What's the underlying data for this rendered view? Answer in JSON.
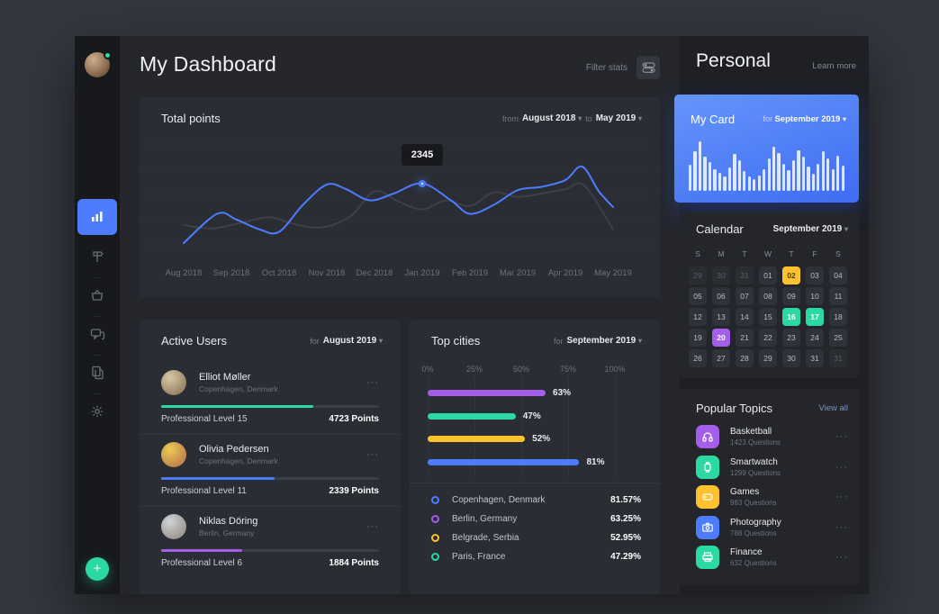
{
  "colors": {
    "accent_blue": "#4d7cfe",
    "green": "#2bd9a4",
    "yellow": "#fdc22d",
    "purple": "#a55eea",
    "panel": "#2a2d34",
    "sidebar": "#17191d",
    "main_bg": "#25272d",
    "right_bg": "#1e2025",
    "outer_bg": "#34373e"
  },
  "app": {
    "title": "My Dashboard",
    "filter_stats": "Filter stats"
  },
  "sidebar": {
    "items": [
      {
        "icon": "bar-chart-icon",
        "active": true
      },
      {
        "icon": "signpost-icon",
        "active": false
      },
      {
        "icon": "basket-icon",
        "active": false
      },
      {
        "icon": "chat-icon",
        "active": false
      },
      {
        "icon": "documents-icon",
        "active": false
      },
      {
        "icon": "gear-icon",
        "active": false
      }
    ],
    "fab": "+"
  },
  "total_points": {
    "title": "Total points",
    "from_label": "from",
    "from_value": "August 2018",
    "to_label": "to",
    "to_value": "May 2019",
    "tooltip": "2345",
    "chart_data": {
      "type": "line",
      "x_ticks": [
        "Aug 2018",
        "Sep 2018",
        "Oct 2018",
        "Nov 2018",
        "Dec 2018",
        "Jan 2019",
        "Feb 2019",
        "Mar 2019",
        "Apr 2019",
        "May 2019"
      ],
      "highlight": {
        "month": "Jan 2019",
        "value": 2345
      },
      "series": [
        {
          "name": "points",
          "color": "#4d7cfe",
          "points": [
            [
              0,
              12
            ],
            [
              0.7,
              38
            ],
            [
              1.1,
              33
            ],
            [
              1.6,
              24
            ],
            [
              2.0,
              22
            ],
            [
              2.5,
              46
            ],
            [
              3.0,
              64
            ],
            [
              3.4,
              60
            ],
            [
              3.9,
              50
            ],
            [
              4.4,
              56
            ],
            [
              5.0,
              65
            ],
            [
              5.6,
              50
            ],
            [
              6.0,
              38
            ],
            [
              6.5,
              46
            ],
            [
              7.0,
              59
            ],
            [
              7.5,
              62
            ],
            [
              8.0,
              68
            ],
            [
              8.35,
              80
            ],
            [
              8.7,
              58
            ],
            [
              9.0,
              44
            ]
          ]
        },
        {
          "name": "secondary",
          "color": "#3c4047",
          "points": [
            [
              0,
              28
            ],
            [
              0.6,
              25
            ],
            [
              1.2,
              30
            ],
            [
              1.8,
              35
            ],
            [
              2.3,
              29
            ],
            [
              2.9,
              26
            ],
            [
              3.5,
              36
            ],
            [
              4.0,
              58
            ],
            [
              4.5,
              49
            ],
            [
              5.0,
              42
            ],
            [
              5.5,
              50
            ],
            [
              6.0,
              45
            ],
            [
              6.5,
              57
            ],
            [
              7.0,
              53
            ],
            [
              7.5,
              56
            ],
            [
              8.0,
              60
            ],
            [
              8.4,
              63
            ],
            [
              9.0,
              24
            ]
          ]
        }
      ]
    }
  },
  "active_users": {
    "title": "Active Users",
    "for_label": "for",
    "for_value": "August 2019",
    "users": [
      {
        "name": "Elliot Møller",
        "location": "Copenhagen, Denmark",
        "level": "Professional Level 15",
        "points": "4723 Points",
        "bar_color": "#2bd9a4",
        "bar_pct": 70,
        "avatar_colors": [
          "#d9c9a8",
          "#7f6a4e"
        ]
      },
      {
        "name": "Olivia Pedersen",
        "location": "Copenhagen, Denmark",
        "level": "Professional Level 11",
        "points": "2339 Points",
        "bar_color": "#4d7cfe",
        "bar_pct": 52,
        "avatar_colors": [
          "#eccb55",
          "#b06a4a"
        ]
      },
      {
        "name": "Niklas Döring",
        "location": "Berlin, Germany",
        "level": "Professional Level 6",
        "points": "1884 Points",
        "bar_color": "#a55eea",
        "bar_pct": 37,
        "avatar_colors": [
          "#cfd3d8",
          "#8b8277"
        ]
      }
    ],
    "menu_dots": "···"
  },
  "top_cities": {
    "title": "Top cities",
    "for_label": "for",
    "for_value": "September 2019",
    "chart_data": {
      "type": "bar",
      "axis_ticks": [
        "0%",
        "25%",
        "50%",
        "75%",
        "100%"
      ],
      "bars": [
        {
          "pct": 63,
          "label": "63%",
          "color": "#a55eea"
        },
        {
          "pct": 47,
          "label": "47%",
          "color": "#2bd9a4"
        },
        {
          "pct": 52,
          "label": "52%",
          "color": "#fdc22d"
        },
        {
          "pct": 81,
          "label": "81%",
          "color": "#4d7cfe"
        }
      ]
    },
    "legend": [
      {
        "city": "Copenhagen, Denmark",
        "value": "81.57%",
        "color": "#4d7cfe"
      },
      {
        "city": "Berlin, Germany",
        "value": "63.25%",
        "color": "#a55eea"
      },
      {
        "city": "Belgrade, Serbia",
        "value": "52.95%",
        "color": "#fdc22d"
      },
      {
        "city": "Paris, France",
        "value": "47.29%",
        "color": "#2bd9a4"
      }
    ]
  },
  "personal": {
    "title": "Personal",
    "learn_more": "Learn more",
    "my_card": {
      "title": "My Card",
      "for_label": "for",
      "for_value": "September 2019",
      "chart_data": {
        "type": "bar",
        "values": [
          50,
          75,
          95,
          65,
          55,
          42,
          35,
          28,
          45,
          70,
          58,
          38,
          28,
          22,
          30,
          42,
          62,
          85,
          72,
          52,
          40,
          58,
          78,
          65,
          46,
          32,
          52,
          76,
          62,
          42,
          68,
          48
        ]
      }
    }
  },
  "calendar": {
    "title": "Calendar",
    "month_value": "September 2019",
    "day_headers": [
      "S",
      "M",
      "T",
      "W",
      "T",
      "F",
      "S"
    ],
    "cells": [
      {
        "d": "29",
        "state": "muted"
      },
      {
        "d": "30",
        "state": "muted"
      },
      {
        "d": "31",
        "state": "muted"
      },
      {
        "d": "01",
        "state": "normal"
      },
      {
        "d": "02",
        "state": "yellow"
      },
      {
        "d": "03",
        "state": "normal"
      },
      {
        "d": "04",
        "state": "normal"
      },
      {
        "d": "05",
        "state": "normal"
      },
      {
        "d": "06",
        "state": "normal"
      },
      {
        "d": "07",
        "state": "normal"
      },
      {
        "d": "08",
        "state": "normal"
      },
      {
        "d": "09",
        "state": "normal"
      },
      {
        "d": "10",
        "state": "normal"
      },
      {
        "d": "11",
        "state": "normal"
      },
      {
        "d": "12",
        "state": "normal"
      },
      {
        "d": "13",
        "state": "normal"
      },
      {
        "d": "14",
        "state": "normal"
      },
      {
        "d": "15",
        "state": "normal"
      },
      {
        "d": "16",
        "state": "green"
      },
      {
        "d": "17",
        "state": "green"
      },
      {
        "d": "18",
        "state": "normal"
      },
      {
        "d": "19",
        "state": "normal"
      },
      {
        "d": "20",
        "state": "purple"
      },
      {
        "d": "21",
        "state": "normal"
      },
      {
        "d": "22",
        "state": "normal"
      },
      {
        "d": "23",
        "state": "normal"
      },
      {
        "d": "24",
        "state": "normal"
      },
      {
        "d": "25",
        "state": "normal"
      },
      {
        "d": "26",
        "state": "normal"
      },
      {
        "d": "27",
        "state": "normal"
      },
      {
        "d": "28",
        "state": "normal"
      },
      {
        "d": "29",
        "state": "normal"
      },
      {
        "d": "30",
        "state": "normal"
      },
      {
        "d": "31",
        "state": "normal"
      },
      {
        "d": "31",
        "state": "muted"
      }
    ]
  },
  "popular_topics": {
    "title": "Popular Topics",
    "view_all": "View all",
    "items": [
      {
        "name": "Basketball",
        "questions": "1423 Questions",
        "color": "#a55eea",
        "icon": "headphones-icon"
      },
      {
        "name": "Smartwatch",
        "questions": "1299 Questions",
        "color": "#2bd9a4",
        "icon": "smartwatch-icon"
      },
      {
        "name": "Games",
        "questions": "983 Questions",
        "color": "#fdc22d",
        "icon": "gamepad-icon"
      },
      {
        "name": "Photography",
        "questions": "788 Questions",
        "color": "#4d7cfe",
        "icon": "camera-icon"
      },
      {
        "name": "Finance",
        "questions": "632 Questions",
        "color": "#2bd9a4",
        "icon": "printer-icon"
      }
    ],
    "menu_dots": "···"
  }
}
